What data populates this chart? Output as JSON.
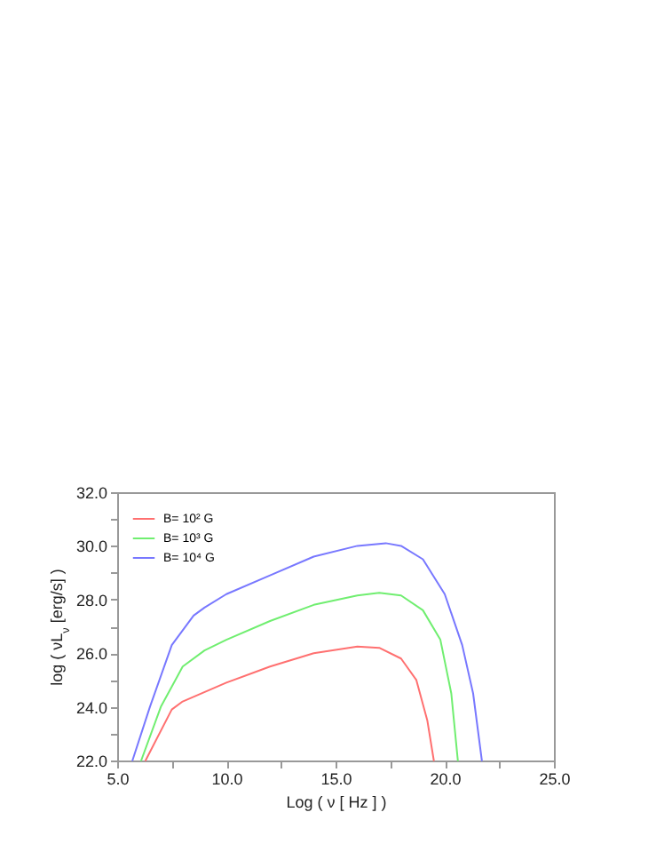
{
  "chart_data": {
    "type": "line",
    "xlabel": "Log ( ν [ Hz ] )",
    "ylabel": "log ( νL$_{ν}$ [erg/s] )",
    "xlim": [
      5,
      25
    ],
    "ylim": [
      22,
      32
    ],
    "xticks": [
      {
        "value": 5,
        "label": "5.0"
      },
      {
        "value": 7.5,
        "label": null
      },
      {
        "value": 10,
        "label": "10.0"
      },
      {
        "value": 12.5,
        "label": null
      },
      {
        "value": 15,
        "label": "15.0"
      },
      {
        "value": 17.5,
        "label": null
      },
      {
        "value": 20,
        "label": "20.0"
      },
      {
        "value": 22.5,
        "label": null
      },
      {
        "value": 25,
        "label": "25.0"
      }
    ],
    "yticks": [
      {
        "value": 22,
        "label": "22.0"
      },
      {
        "value": 23,
        "label": null
      },
      {
        "value": 24,
        "label": "24.0"
      },
      {
        "value": 25,
        "label": null
      },
      {
        "value": 26,
        "label": "26.0"
      },
      {
        "value": 27,
        "label": null
      },
      {
        "value": 28,
        "label": "28.0"
      },
      {
        "value": 29,
        "label": null
      },
      {
        "value": 30,
        "label": "30.0"
      },
      {
        "value": 31,
        "label": null
      },
      {
        "value": 32,
        "label": "32.0"
      }
    ],
    "grid": false,
    "legend": "top left",
    "series": [
      {
        "name": "B= 10² G",
        "color": "#ff7070",
        "x": [
          6.3,
          7.5,
          8,
          10,
          12,
          14,
          16,
          17,
          18,
          18.7,
          19.2,
          19.5
        ],
        "values": [
          22,
          23.9,
          24.2,
          24.9,
          25.5,
          26.0,
          26.25,
          26.2,
          25.8,
          25.0,
          23.5,
          22
        ]
      },
      {
        "name": "B= 10³ G",
        "color": "#70ee70",
        "x": [
          6.1,
          7,
          8,
          9,
          10,
          12,
          14,
          16,
          17,
          18,
          19,
          19.8,
          20.3,
          20.6
        ],
        "values": [
          22,
          24,
          25.5,
          26.1,
          26.5,
          27.2,
          27.8,
          28.15,
          28.25,
          28.15,
          27.6,
          26.5,
          24.5,
          22
        ]
      },
      {
        "name": "B= 10⁴ G",
        "color": "#7878ff",
        "x": [
          5.7,
          6.5,
          7.5,
          8.5,
          9,
          10,
          12,
          14,
          16,
          17.3,
          18,
          19,
          20,
          20.8,
          21.3,
          21.7
        ],
        "values": [
          22,
          24,
          26.3,
          27.4,
          27.7,
          28.2,
          28.9,
          29.6,
          30.0,
          30.1,
          30.0,
          29.5,
          28.2,
          26.3,
          24.5,
          22
        ]
      }
    ]
  }
}
